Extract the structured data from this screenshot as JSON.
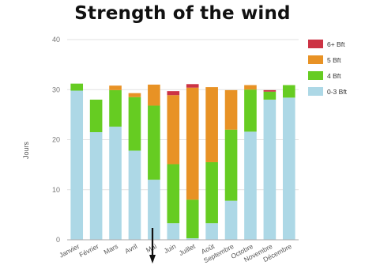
{
  "chart_data": {
    "type": "bar",
    "stacked": true,
    "title": "Strength of the wind",
    "ylabel": "Jours",
    "ylim": [
      0,
      40
    ],
    "yticks": [
      0,
      10,
      20,
      30,
      40
    ],
    "grid": true,
    "legend_position": "right",
    "categories": [
      "Janvier",
      "Février",
      "Mars",
      "Avril",
      "Mai",
      "Juin",
      "Juillet",
      "Août",
      "Septembre",
      "Octobre",
      "Novembre",
      "Décembre"
    ],
    "series": [
      {
        "name": "0-3 Bft",
        "color": "#add8e6",
        "values": [
          29.8,
          21.5,
          22.6,
          17.8,
          12.0,
          3.3,
          0.3,
          3.3,
          7.8,
          21.6,
          28.0,
          28.4
        ]
      },
      {
        "name": "4 Bft",
        "color": "#66cc22",
        "values": [
          1.4,
          6.5,
          7.3,
          10.7,
          14.8,
          11.8,
          7.7,
          12.2,
          14.2,
          8.4,
          1.6,
          2.5
        ]
      },
      {
        "name": "5 Bft",
        "color": "#e89225",
        "values": [
          0,
          0,
          0.9,
          0.8,
          4.2,
          13.8,
          22.4,
          15.0,
          7.9,
          0.9,
          0,
          0
        ]
      },
      {
        "name": "6+ Bft",
        "color": "#cc3344",
        "values": [
          0,
          0,
          0,
          0,
          0,
          0.8,
          0.7,
          0,
          0,
          0,
          0.3,
          0
        ]
      }
    ]
  }
}
